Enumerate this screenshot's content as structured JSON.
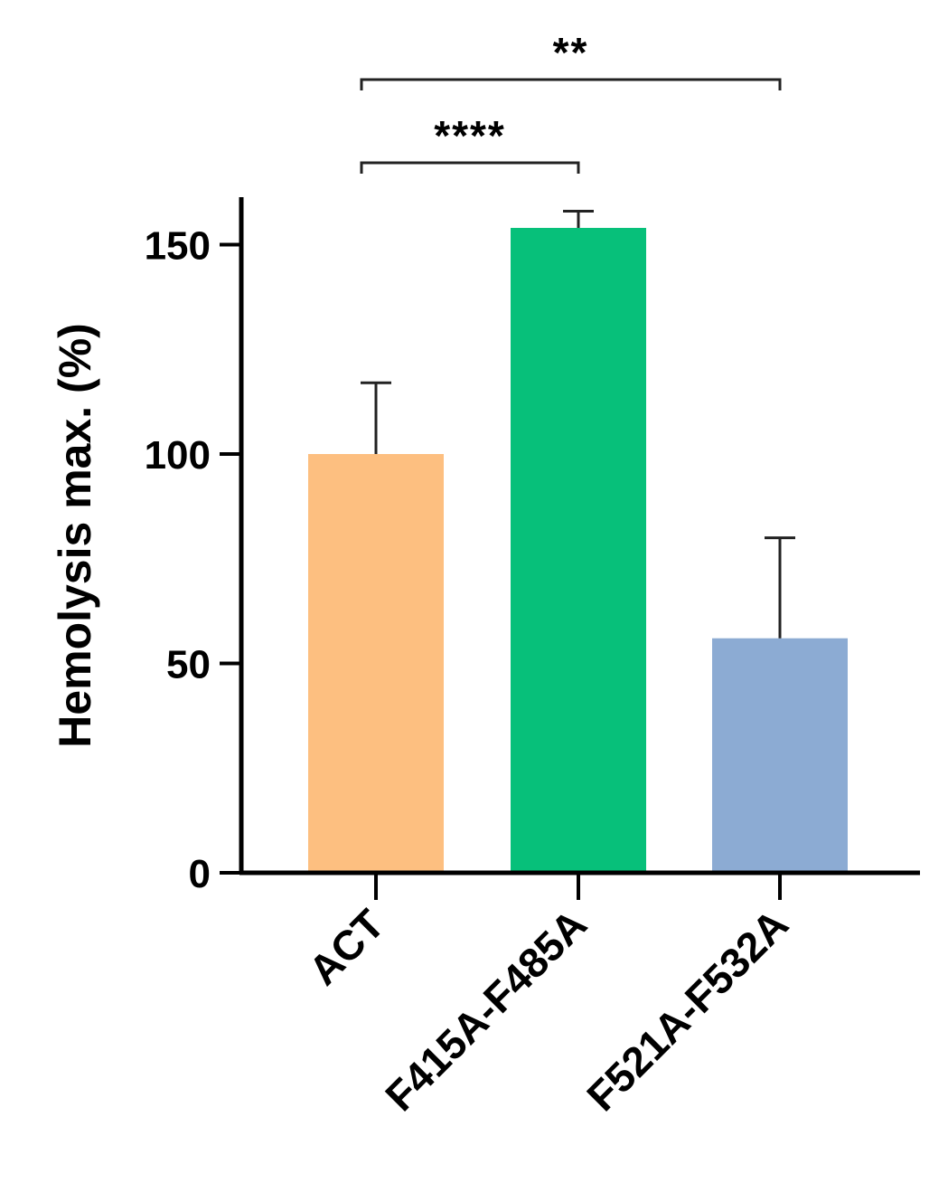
{
  "chart_data": {
    "type": "bar",
    "title": "",
    "xlabel": "",
    "ylabel": "Hemolysis max. (%)",
    "ylim": [
      0,
      160
    ],
    "yticks": [
      0,
      50,
      100,
      150
    ],
    "categories": [
      "ACT",
      "F415A-F485A",
      "F521A-F532A"
    ],
    "values": [
      100,
      154,
      56
    ],
    "errors": [
      17,
      4,
      24
    ],
    "colors": [
      "#FDBF80",
      "#07C07A",
      "#8CABD3"
    ],
    "significance": [
      {
        "from": "ACT",
        "to": "F415A-F485A",
        "label": "****"
      },
      {
        "from": "ACT",
        "to": "F521A-F532A",
        "label": "**"
      }
    ],
    "grid": false,
    "legend": "none"
  }
}
